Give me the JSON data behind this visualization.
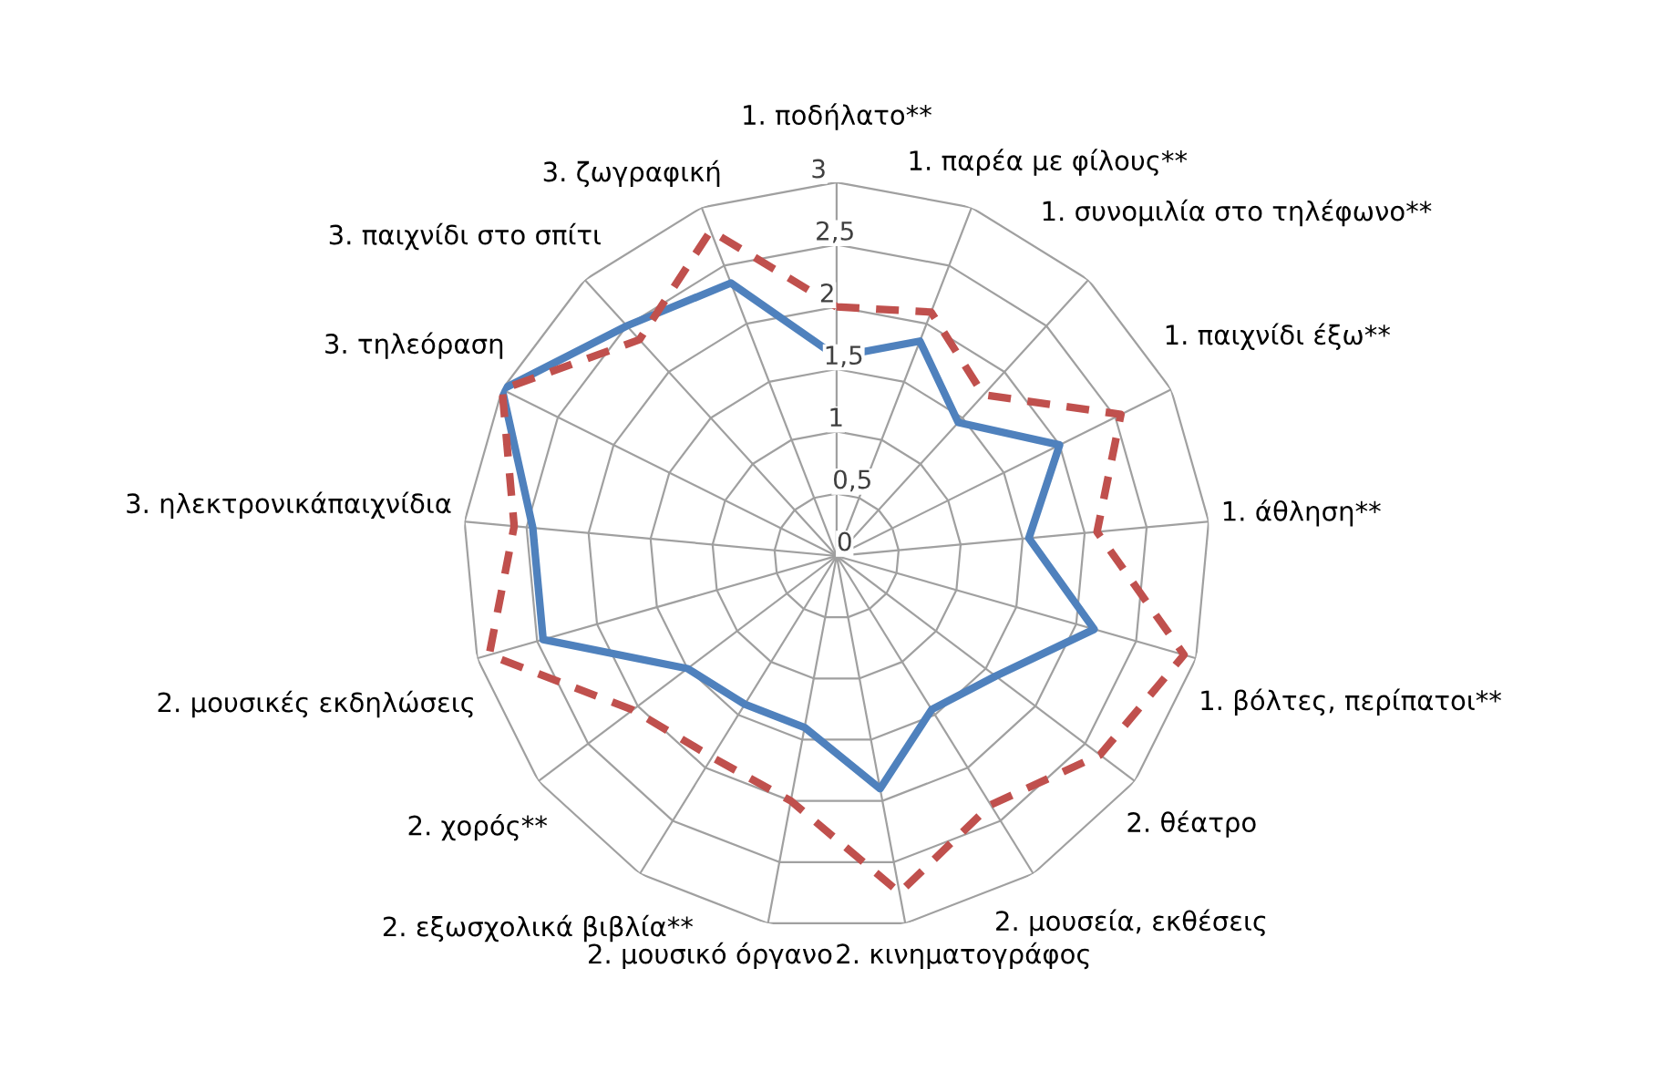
{
  "chart_data": {
    "type": "radar",
    "categories": [
      "1. ποδήλατο**",
      "1. παρέα με φίλους**",
      "1. συνομιλία στο τηλέφωνο**",
      "1. παιχνίδι έξω**",
      "1. άθληση**",
      "1. βόλτες, περίπατοι**",
      "2. θέατρο",
      "2. μουσεία, εκθέσεις",
      "2. κινηματογράφος",
      "2. μουσικό όργανο",
      "2. εξωσχολικά βιβλία**",
      "2. χορός**",
      "2. μουσικές εκδηλώσεις",
      "3. ηλεκτρονικάπαιχνίδια",
      "3. τηλεόραση",
      "3. παιχνίδι στο σπίτι",
      "3. ζωγραφική"
    ],
    "series": [
      {
        "color": "#4f81bd",
        "line_style": "solid",
        "values": [
          1.6,
          1.85,
          1.45,
          2.0,
          1.55,
          2.15,
          1.6,
          1.45,
          1.9,
          1.4,
          1.4,
          1.5,
          2.45,
          2.45,
          3.0,
          2.5,
          2.35
        ]
      },
      {
        "color": "#c0504d",
        "line_style": "dashed",
        "values": [
          2.0,
          2.1,
          1.75,
          2.55,
          2.1,
          2.9,
          2.65,
          2.35,
          2.75,
          2.0,
          1.9,
          2.05,
          2.9,
          2.6,
          3.0,
          2.35,
          2.8
        ]
      }
    ],
    "ylim": [
      0,
      3
    ],
    "yticks": [
      0,
      {
        "value": 0.5,
        "label": "0,5"
      },
      1,
      {
        "value": 1.5,
        "label": "1,5"
      },
      2,
      {
        "value": 2.5,
        "label": "2,5"
      },
      3
    ],
    "grid": true,
    "marker": "none"
  }
}
